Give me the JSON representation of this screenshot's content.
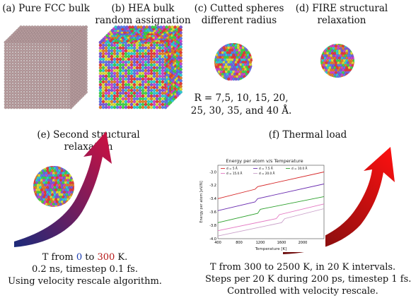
{
  "panels": {
    "a": {
      "line1": "(a) Pure FCC bulk"
    },
    "b": {
      "line1": "(b) HEA bulk",
      "line2": "random assignation"
    },
    "c": {
      "line1": "(c) Cutted spheres",
      "line2": "different radius",
      "radius_line1": "R = 7,5, 10, 15, 20,",
      "radius_line2": "25, 30, 35, and 40 Å."
    },
    "d": {
      "line1": "(d) FIRE structural",
      "line2": "relaxation"
    },
    "e": {
      "line1": "(e) Second structural",
      "line2": "relaxation",
      "t_prefix": "T from ",
      "t_from": "0",
      "t_mid": " to ",
      "t_to": "300",
      "t_suffix": " K.",
      "desc2": "0.2 ns, timestep 0.1 fs.",
      "desc3": "Using velocity rescale algorithm."
    },
    "f": {
      "line1": "(f) Thermal load",
      "desc1": "T from 300 to 2500 K, in 20 K intervals.",
      "desc2": "Steps per 20 K during 200 ps, timestep 1 fs.",
      "desc3": "Controlled with velocity rescale."
    }
  },
  "colors": {
    "atom_palette": [
      "#e23b3b",
      "#3fd04a",
      "#d9d936",
      "#7b59d6",
      "#c945c9",
      "#2fc8d0",
      "#e07c2a",
      "#5b7be8"
    ],
    "fcc_atom": "#b59a9c",
    "arrow_e_start": "#1b2a7a",
    "arrow_e_end": "#d01040",
    "arrow_f_start": "#6a0e0e",
    "arrow_f_end": "#ff1010"
  },
  "chart_data": {
    "type": "line",
    "title": "Energy per atom v/s Temperature",
    "xlabel": "Temperature [K]",
    "ylabel": "Energy per atom [eV/N]",
    "xlim": [
      400,
      2400
    ],
    "ylim": [
      -4.0,
      -2.9
    ],
    "xticks": [
      "400",
      "800",
      "1200",
      "1600",
      "2000"
    ],
    "yticks": [
      "-3.0",
      "-3.2",
      "-3.4",
      "-3.6",
      "-3.8",
      "-4.0"
    ],
    "legend_position": "top-left",
    "series": [
      {
        "name": "d = 5 Å",
        "color": "#d62728",
        "x": [
          400,
          1100,
          1150,
          2400
        ],
        "y": [
          -3.4,
          -3.26,
          -3.22,
          -3.0
        ]
      },
      {
        "name": "d = 7.5 Å",
        "color": "#6a2cb0",
        "x": [
          400,
          1100,
          1150,
          2400
        ],
        "y": [
          -3.58,
          -3.45,
          -3.4,
          -3.18
        ]
      },
      {
        "name": "d = 10.0 Å",
        "color": "#2ca02c",
        "x": [
          400,
          1150,
          1200,
          2400
        ],
        "y": [
          -3.76,
          -3.62,
          -3.56,
          -3.37
        ]
      },
      {
        "name": "d = 15.0 Å",
        "color": "#e377c2",
        "x": [
          400,
          1500,
          1560,
          2400
        ],
        "y": [
          -3.88,
          -3.7,
          -3.64,
          -3.48
        ]
      },
      {
        "name": "d = 20.0 Å",
        "color": "#c9a0c9",
        "x": [
          400,
          1600,
          1660,
          2400
        ],
        "y": [
          -3.96,
          -3.76,
          -3.7,
          -3.55
        ]
      }
    ]
  }
}
